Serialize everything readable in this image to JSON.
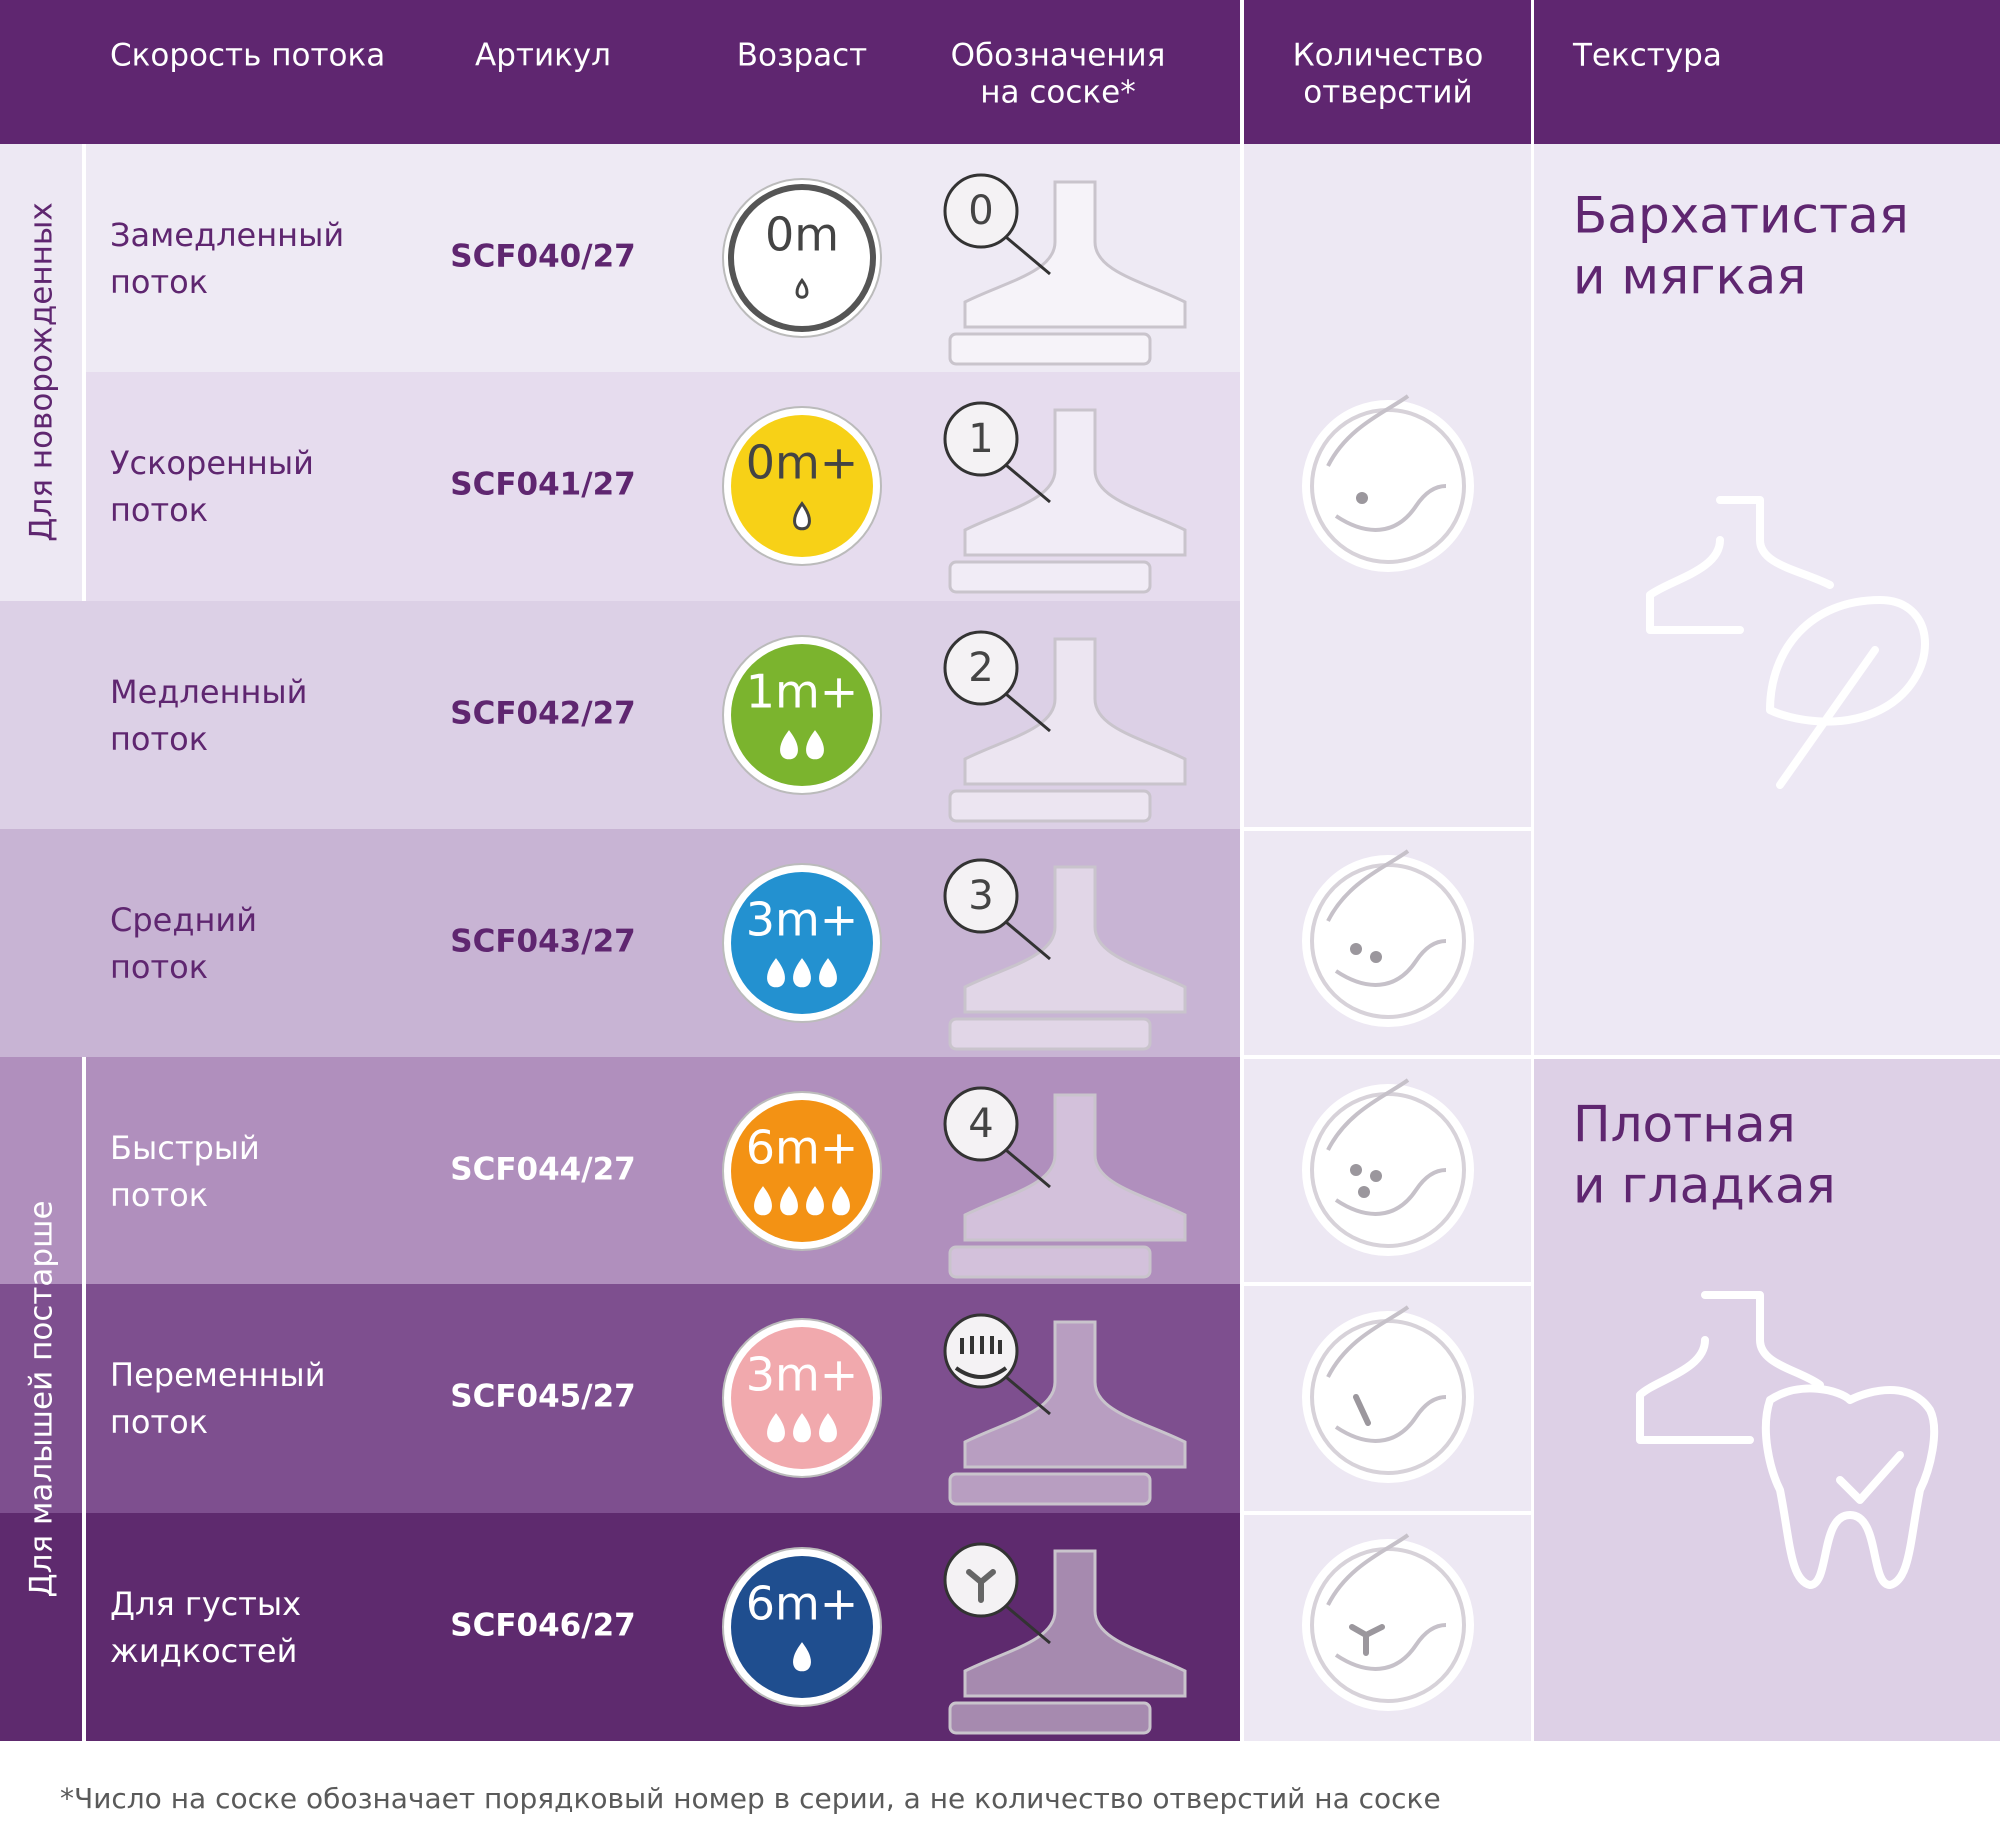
{
  "header": {
    "columns": [
      [
        "Скорость потока"
      ],
      [
        "Артикул"
      ],
      [
        "Возраст"
      ],
      [
        "Обозначения",
        "на соске*"
      ],
      [
        "Количество",
        "отверстий"
      ],
      [
        "Текстура"
      ]
    ]
  },
  "groups": [
    "Для новорожденных",
    "Для малышей постарше"
  ],
  "rows": [
    {
      "flow": [
        "Замедленный",
        "поток"
      ],
      "sku": "SCF040/27",
      "age": "0m",
      "marker": "0"
    },
    {
      "flow": [
        "Ускоренный",
        "поток"
      ],
      "sku": "SCF041/27",
      "age": "0m+",
      "marker": "1"
    },
    {
      "flow": [
        "Медленный",
        "поток"
      ],
      "sku": "SCF042/27",
      "age": "1m+",
      "marker": "2"
    },
    {
      "flow": [
        "Средний",
        "поток"
      ],
      "sku": "SCF043/27",
      "age": "3m+",
      "marker": "3"
    },
    {
      "flow": [
        "Быстрый",
        "поток"
      ],
      "sku": "SCF044/27",
      "age": "6m+",
      "marker": "4"
    },
    {
      "flow": [
        "Переменный",
        "поток"
      ],
      "sku": "SCF045/27",
      "age": "3m+"
    },
    {
      "flow": [
        "Для густых",
        "жидкостей"
      ],
      "sku": "SCF046/27",
      "age": "6m+"
    }
  ],
  "textures": [
    [
      "Бархатистая",
      "и мягкая"
    ],
    [
      "Плотная",
      "и гладкая"
    ]
  ],
  "footnote": "*Число на соске обозначает порядковый номер в серии, а не количество отверстий на соске"
}
